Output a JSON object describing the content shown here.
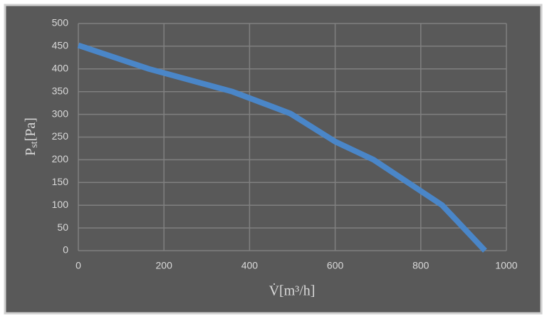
{
  "chart_data": {
    "type": "line",
    "x_label": "V̇[m³/h]",
    "y_label": {
      "main": "P",
      "sub": "st",
      "unit": "[Pa]"
    },
    "x": [
      0,
      165,
      360,
      495,
      600,
      690,
      850,
      950
    ],
    "series": [
      {
        "color": "#4a86c8",
        "values": [
          452,
          400,
          350,
          302,
          240,
          200,
          100,
          0
        ]
      }
    ],
    "xlim": [
      0,
      1000
    ],
    "xticks": [
      0,
      200,
      400,
      600,
      800,
      1000
    ],
    "ylim": [
      0,
      500
    ],
    "yticks": [
      0,
      50,
      100,
      150,
      200,
      250,
      300,
      350,
      400,
      450,
      500
    ],
    "grid": true
  }
}
